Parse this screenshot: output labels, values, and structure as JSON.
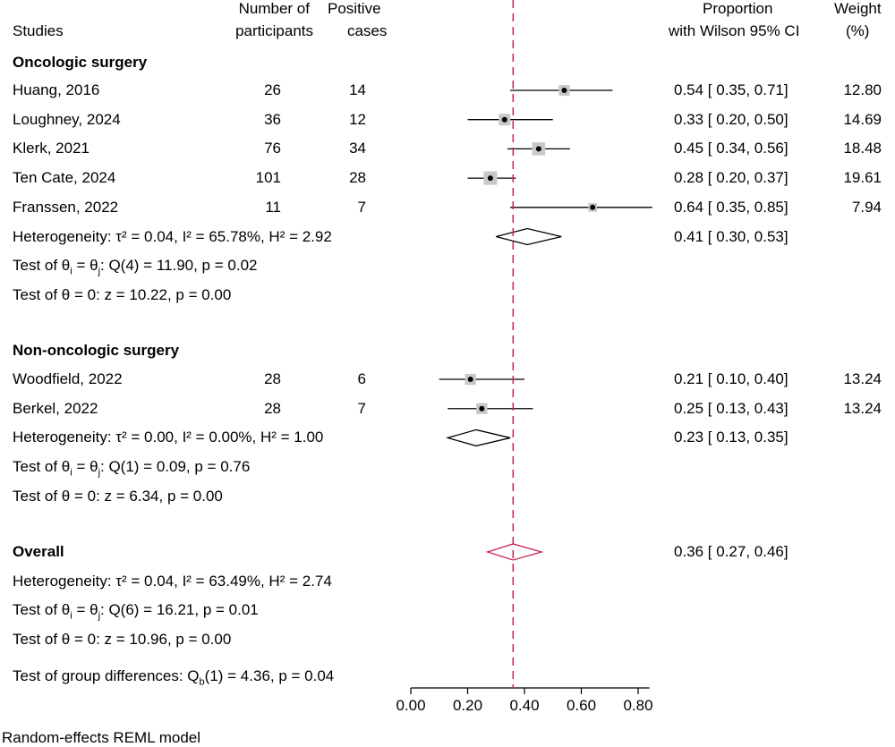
{
  "header": {
    "studies": "Studies",
    "participants_l1": "Number of",
    "participants_l2": "participants",
    "positive_l1": "Positive",
    "positive_l2": "cases",
    "proportion_l1": "Proportion",
    "proportion_l2": "with Wilson 95% CI",
    "weight_l1": "Weight",
    "weight_l2": "(%)"
  },
  "footer": "Random-effects REML model",
  "chart_data": {
    "type": "forest",
    "x_axis": {
      "ticks": [
        0.0,
        0.2,
        0.4,
        0.6,
        0.8
      ],
      "tick_labels": [
        "0.00",
        "0.20",
        "0.40",
        "0.60",
        "0.80"
      ],
      "range": [
        0.0,
        0.84
      ]
    },
    "reference_line": 0.36,
    "groups": [
      {
        "name": "Oncologic surgery",
        "studies": [
          {
            "study": "Huang, 2016",
            "n": "26",
            "positive": "14",
            "est": 0.54,
            "lo": 0.35,
            "hi": 0.71,
            "ci_text": "0.54 [ 0.35,  0.71]",
            "weight": "12.80",
            "w": 12.8
          },
          {
            "study": "Loughney, 2024",
            "n": "36",
            "positive": "12",
            "est": 0.33,
            "lo": 0.2,
            "hi": 0.5,
            "ci_text": "0.33 [ 0.20,  0.50]",
            "weight": "14.69",
            "w": 14.69
          },
          {
            "study": "Klerk, 2021",
            "n": "76",
            "positive": "34",
            "est": 0.45,
            "lo": 0.34,
            "hi": 0.56,
            "ci_text": "0.45 [ 0.34,  0.56]",
            "weight": "18.48",
            "w": 18.48
          },
          {
            "study": "Ten Cate, 2024",
            "n": "101",
            "positive": "28",
            "est": 0.28,
            "lo": 0.2,
            "hi": 0.37,
            "ci_text": "0.28 [ 0.20,  0.37]",
            "weight": "19.61",
            "w": 19.61
          },
          {
            "study": "Franssen, 2022",
            "n": "11",
            "positive": "7",
            "est": 0.64,
            "lo": 0.35,
            "hi": 0.85,
            "ci_text": "0.64 [ 0.35,  0.85]",
            "weight": "7.94",
            "w": 7.94
          }
        ],
        "pooled": {
          "est": 0.41,
          "lo": 0.3,
          "hi": 0.53,
          "ci_text": "0.41 [ 0.30,  0.53]"
        },
        "heterogeneity": "Heterogeneity: τ² = 0.04, I² = 65.78%, H² = 2.92",
        "homogeneity_test": {
          "prefix": "Test of θ",
          "mid": " = θ",
          "suffix": ": Q(4) = 11.90, p = 0.02"
        },
        "zero_test": "Test of θ = 0: z = 10.22, p = 0.00"
      },
      {
        "name": "Non-oncologic surgery",
        "studies": [
          {
            "study": "Woodfield, 2022",
            "n": "28",
            "positive": "6",
            "est": 0.21,
            "lo": 0.1,
            "hi": 0.4,
            "ci_text": "0.21 [ 0.10,  0.40]",
            "weight": "13.24",
            "w": 13.24
          },
          {
            "study": "Berkel, 2022",
            "n": "28",
            "positive": "7",
            "est": 0.25,
            "lo": 0.13,
            "hi": 0.43,
            "ci_text": "0.25 [ 0.13,  0.43]",
            "weight": "13.24",
            "w": 13.24
          }
        ],
        "pooled": {
          "est": 0.23,
          "lo": 0.13,
          "hi": 0.35,
          "ci_text": "0.23 [ 0.13,  0.35]"
        },
        "heterogeneity": "Heterogeneity: τ² = 0.00, I² = 0.00%, H² = 1.00",
        "homogeneity_test": {
          "prefix": "Test of θ",
          "mid": " = θ",
          "suffix": ": Q(1) = 0.09, p = 0.76"
        },
        "zero_test": "Test of θ = 0: z = 6.34, p = 0.00"
      }
    ],
    "overall": {
      "name": "Overall",
      "pooled": {
        "est": 0.36,
        "lo": 0.27,
        "hi": 0.46,
        "ci_text": "0.36 [ 0.27,  0.46]"
      },
      "heterogeneity": "Heterogeneity: τ² = 0.04, I² = 63.49%, H² = 2.74",
      "homogeneity_test": {
        "prefix": "Test of θ",
        "mid": " = θ",
        "suffix": ": Q(6) = 16.21, p = 0.01"
      },
      "zero_test": "Test of θ = 0: z = 10.96, p = 0.00"
    },
    "group_difference": {
      "prefix": "Test of group differences: Q",
      "sub": "b",
      "suffix": "(1) = 4.36, p = 0.04"
    },
    "colors": {
      "reference_line": "#c8264e",
      "overall_diamond": "#c8264e",
      "weight_box": "#c8c8c8",
      "marks": "#000000"
    }
  }
}
